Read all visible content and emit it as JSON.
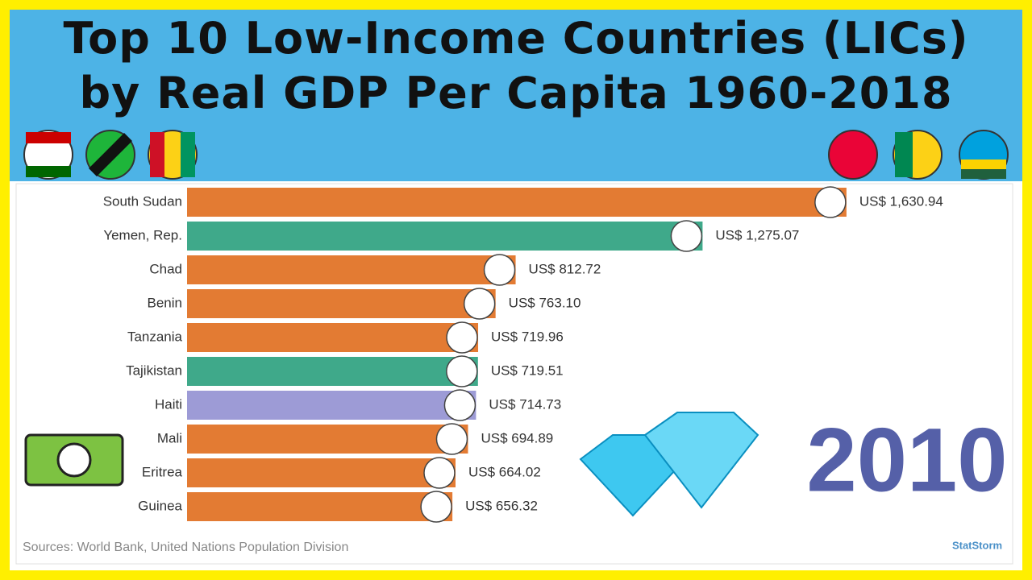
{
  "chart_data": {
    "type": "bar",
    "orientation": "horizontal",
    "title": "Top 10 Low-Income Countries (LICs) by Real GDP Per Capita 1960-2018",
    "categories": [
      "South Sudan",
      "Yemen, Rep.",
      "Chad",
      "Benin",
      "Tanzania",
      "Tajikistan",
      "Haiti",
      "Mali",
      "Eritrea",
      "Guinea"
    ],
    "values": [
      1630.94,
      1275.07,
      812.72,
      763.1,
      719.96,
      719.51,
      714.73,
      694.89,
      664.02,
      656.32
    ],
    "value_labels": [
      "US$ 1,630.94",
      "US$ 1,275.07",
      "US$ 812.72",
      "US$ 763.10",
      "US$ 719.96",
      "US$ 719.51",
      "US$ 714.73",
      "US$ 694.89",
      "US$ 664.02",
      "US$ 656.32"
    ],
    "colors": [
      "#e37b33",
      "#3fa98a",
      "#e37b33",
      "#e37b33",
      "#e37b33",
      "#3fa98a",
      "#9d9bd6",
      "#e37b33",
      "#e37b33",
      "#e37b33"
    ],
    "xlim": [
      0,
      2040
    ],
    "year": "2010",
    "source": "Sources: World Bank, United Nations Population Division",
    "logo": "StatStorm"
  }
}
